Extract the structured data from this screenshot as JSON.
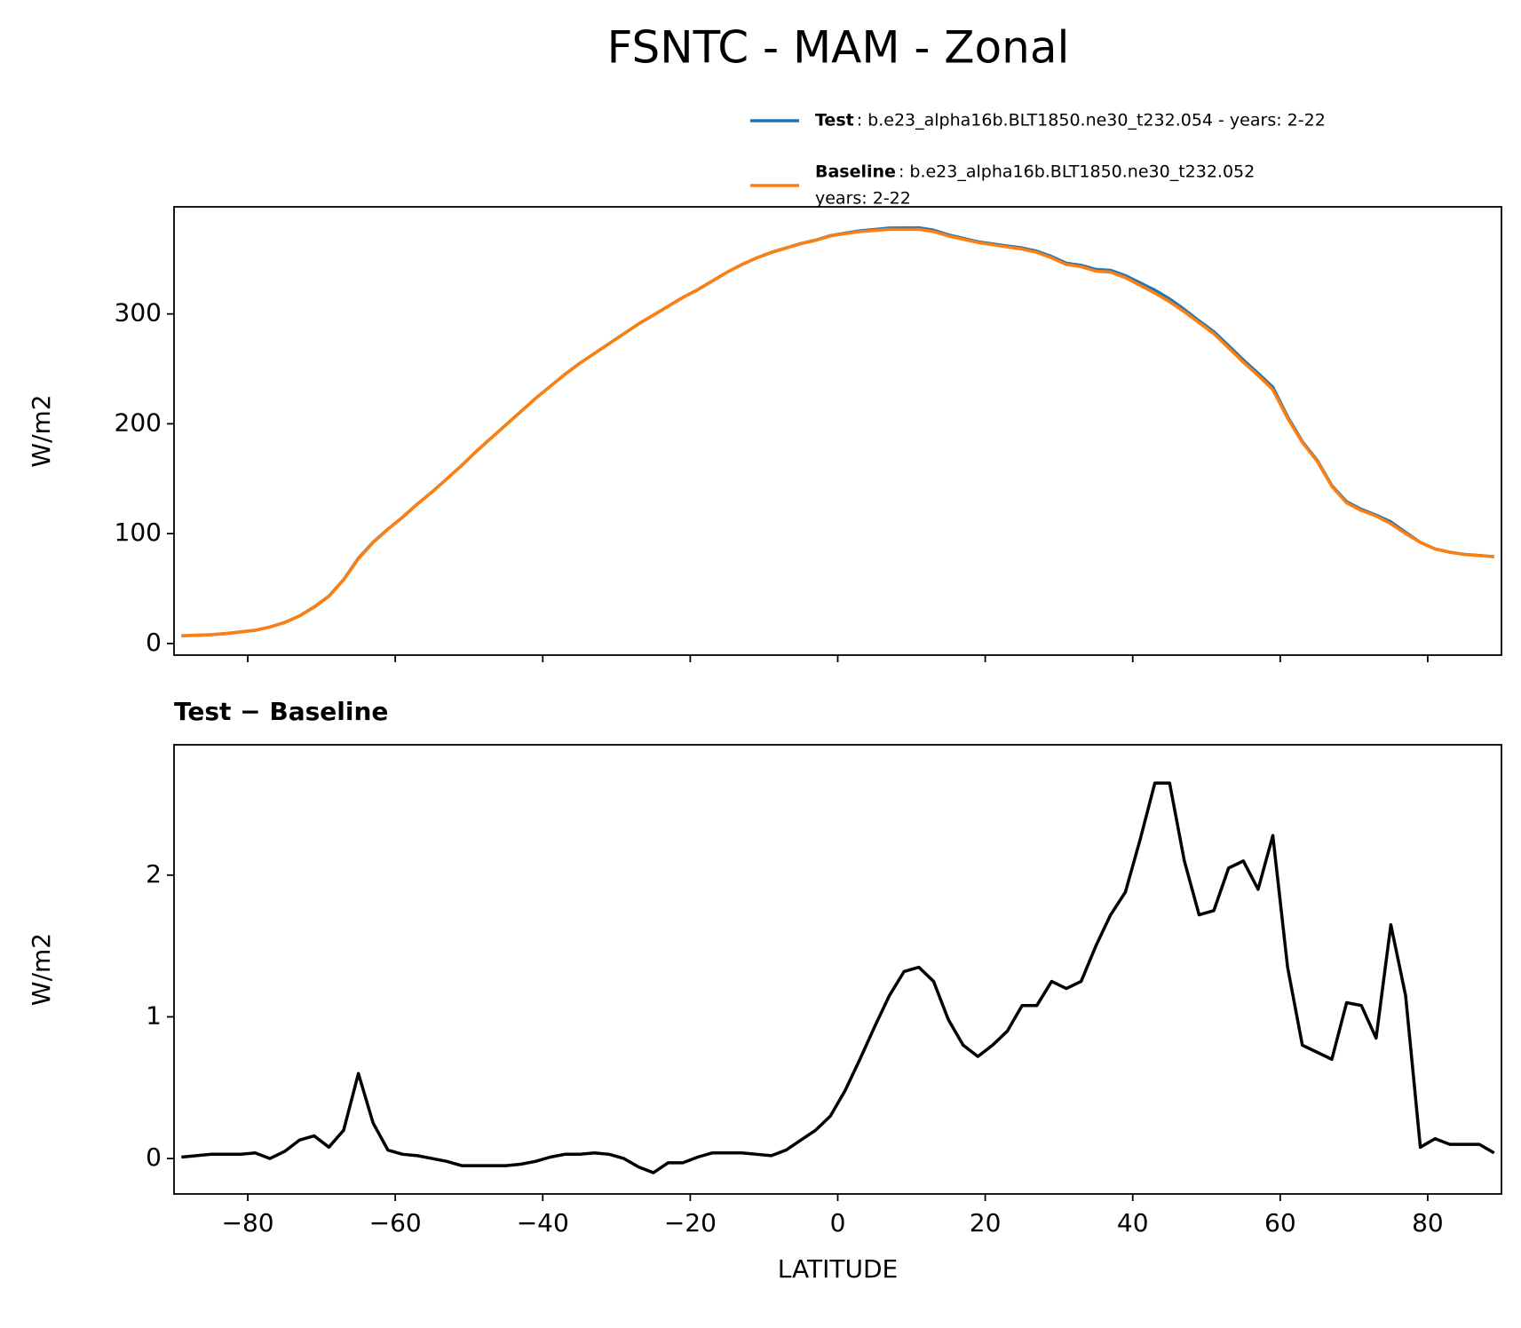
{
  "title": "FSNTC - MAM - Zonal",
  "chart_data": [
    {
      "type": "line",
      "ylabel": "W/m2",
      "x": [
        -89,
        -87,
        -85,
        -83,
        -81,
        -79,
        -77,
        -75,
        -73,
        -71,
        -69,
        -67,
        -65,
        -63,
        -61,
        -59,
        -57,
        -55,
        -53,
        -51,
        -49,
        -47,
        -45,
        -43,
        -41,
        -39,
        -37,
        -35,
        -33,
        -31,
        -29,
        -27,
        -25,
        -23,
        -21,
        -19,
        -17,
        -15,
        -13,
        -11,
        -9,
        -7,
        -5,
        -3,
        -1,
        1,
        3,
        5,
        7,
        9,
        11,
        13,
        15,
        17,
        19,
        21,
        23,
        25,
        27,
        29,
        31,
        33,
        35,
        37,
        39,
        41,
        43,
        45,
        47,
        49,
        51,
        53,
        55,
        57,
        59,
        61,
        63,
        65,
        67,
        69,
        71,
        73,
        75,
        77,
        79,
        81,
        83,
        85,
        87,
        89
      ],
      "series": [
        {
          "name": "Test",
          "description": [
            ": b.e23_alpha16b.BLT1850.ne30_t232.054 - years: 2-22"
          ],
          "color": "#1f77b4",
          "values": [
            7.0,
            7.5,
            8.0,
            9.0,
            10.5,
            12.0,
            15.0,
            19.1,
            25.1,
            33.2,
            43.1,
            58.2,
            77.6,
            92.3,
            104.1,
            115.0,
            127.0,
            138.0,
            150.0,
            162.0,
            175.0,
            187.0,
            199.0,
            211.0,
            223.0,
            234.0,
            245.0,
            255.0,
            264.0,
            273.0,
            282.0,
            290.9,
            298.9,
            307.0,
            315.0,
            322.0,
            330.0,
            338.0,
            345.0,
            351.0,
            356.0,
            360.1,
            364.1,
            367.2,
            371.3,
            373.5,
            375.7,
            376.9,
            378.2,
            378.3,
            378.4,
            376.3,
            372.0,
            368.8,
            365.7,
            363.8,
            361.9,
            360.1,
            357.1,
            352.3,
            346.2,
            344.3,
            340.5,
            339.7,
            334.9,
            328.3,
            321.7,
            313.7,
            304.1,
            293.7,
            283.8,
            271.1,
            258.1,
            245.9,
            233.3,
            206.4,
            183.8,
            166.8,
            143.7,
            129.1,
            122.1,
            116.9,
            110.7,
            101.2,
            92.1,
            86.1,
            83.1,
            81.1,
            80.1,
            79.0
          ]
        },
        {
          "name": "Baseline",
          "description": [
            ": b.e23_alpha16b.BLT1850.ne30_t232.052",
            "years: 2-22"
          ],
          "color": "#ff7f0e",
          "values": [
            7,
            7.5,
            8,
            9,
            10.5,
            12,
            15,
            19,
            25,
            33,
            43,
            58,
            77,
            92,
            104,
            115,
            127,
            138,
            150,
            162,
            175,
            187,
            199,
            211,
            223,
            234,
            245,
            255,
            264,
            273,
            282,
            291,
            299,
            307,
            315,
            322,
            330,
            338,
            345,
            351,
            356,
            360,
            364,
            367,
            371,
            373,
            375,
            376,
            377,
            377,
            377,
            375,
            371,
            368,
            365,
            363,
            361,
            359,
            356,
            351,
            345,
            343,
            339,
            338,
            333,
            326,
            319,
            311,
            302,
            292,
            282,
            269,
            256,
            244,
            231,
            205,
            183,
            166,
            143,
            128,
            121,
            116,
            109,
            100,
            92,
            86,
            83,
            81,
            80,
            79
          ]
        }
      ],
      "xlim": [
        -90,
        90
      ],
      "ylim": [
        -10.6,
        397.5
      ],
      "xticks": [
        -80,
        -60,
        -40,
        -20,
        0,
        20,
        40,
        60,
        80
      ],
      "xticklabels": false,
      "yticks": [
        0,
        100,
        200,
        300
      ]
    },
    {
      "type": "line",
      "title": "Test − Baseline",
      "xlabel": "LATITUDE",
      "ylabel": "W/m2",
      "x": [
        -89,
        -87,
        -85,
        -83,
        -81,
        -79,
        -77,
        -75,
        -73,
        -71,
        -69,
        -67,
        -65,
        -63,
        -61,
        -59,
        -57,
        -55,
        -53,
        -51,
        -49,
        -47,
        -45,
        -43,
        -41,
        -39,
        -37,
        -35,
        -33,
        -31,
        -29,
        -27,
        -25,
        -23,
        -21,
        -19,
        -17,
        -15,
        -13,
        -11,
        -9,
        -7,
        -5,
        -3,
        -1,
        1,
        3,
        5,
        7,
        9,
        11,
        13,
        15,
        17,
        19,
        21,
        23,
        25,
        27,
        29,
        31,
        33,
        35,
        37,
        39,
        41,
        43,
        45,
        47,
        49,
        51,
        53,
        55,
        57,
        59,
        61,
        63,
        65,
        67,
        69,
        71,
        73,
        75,
        77,
        79,
        81,
        83,
        85,
        87,
        89
      ],
      "series": [
        {
          "color": "#000000",
          "values": [
            0.01,
            0.02,
            0.03,
            0.03,
            0.03,
            0.04,
            0.0,
            0.05,
            0.13,
            0.16,
            0.08,
            0.2,
            0.6,
            0.25,
            0.06,
            0.03,
            0.02,
            0.0,
            -0.02,
            -0.05,
            -0.05,
            -0.05,
            -0.05,
            -0.04,
            -0.02,
            0.01,
            0.03,
            0.03,
            0.04,
            0.03,
            0.0,
            -0.06,
            -0.1,
            -0.03,
            -0.03,
            0.01,
            0.04,
            0.04,
            0.04,
            0.03,
            0.02,
            0.06,
            0.13,
            0.2,
            0.3,
            0.48,
            0.7,
            0.93,
            1.15,
            1.32,
            1.35,
            1.25,
            0.98,
            0.8,
            0.72,
            0.8,
            0.9,
            1.08,
            1.08,
            1.25,
            1.2,
            1.25,
            1.5,
            1.72,
            1.88,
            2.25,
            2.65,
            2.65,
            2.1,
            1.72,
            1.75,
            2.05,
            2.1,
            1.9,
            2.28,
            1.35,
            0.8,
            0.75,
            0.7,
            1.1,
            1.08,
            0.85,
            1.65,
            1.15,
            0.08,
            0.14,
            0.1,
            0.1,
            0.1,
            0.04
          ]
        }
      ],
      "xlim": [
        -90,
        90
      ],
      "ylim": [
        -0.25,
        2.92
      ],
      "xticks": [
        {
          "value": -80,
          "label": "−80"
        },
        {
          "value": -60,
          "label": "−60"
        },
        {
          "value": -40,
          "label": "−40"
        },
        {
          "value": -20,
          "label": "−20"
        },
        0,
        20,
        40,
        60,
        80
      ],
      "xticklabels": true,
      "yticks": [
        0,
        1,
        2
      ]
    }
  ]
}
